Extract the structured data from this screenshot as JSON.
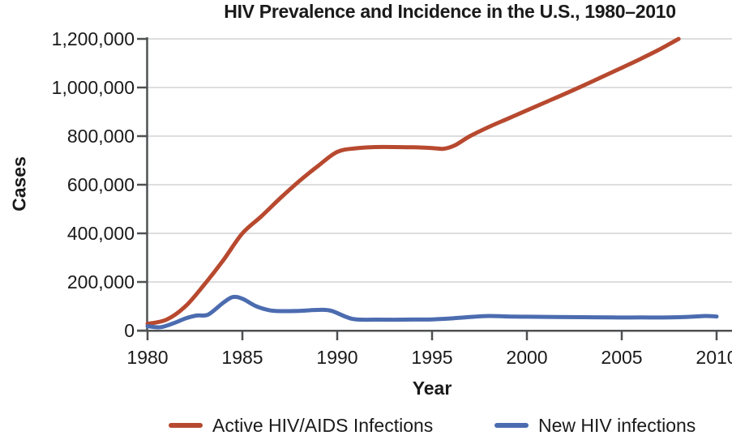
{
  "chart_data": {
    "type": "line",
    "title": "HIV Prevalence and Incidence in the U.S., 1980–2010",
    "xlabel": "Year",
    "ylabel": "Cases",
    "xlim": [
      1980,
      2010
    ],
    "ylim": [
      0,
      1200000
    ],
    "x_ticks": [
      1980,
      1985,
      1990,
      1995,
      2000,
      2005,
      2010
    ],
    "x_tick_labels": [
      "1980",
      "1985",
      "1990",
      "1995",
      "2000",
      "2005",
      "2010"
    ],
    "y_ticks": [
      0,
      200000,
      400000,
      600000,
      800000,
      1000000,
      1200000
    ],
    "y_tick_labels": [
      "0",
      "200,000",
      "400,000",
      "600,000",
      "800,000",
      "1,000,000",
      "1,200,000"
    ],
    "grid": true,
    "legend_position": "bottom",
    "series": [
      {
        "name": "Active HIV/AIDS Infections",
        "color": "#b7492f",
        "points": [
          [
            1980,
            28000
          ],
          [
            1981,
            45000
          ],
          [
            1982,
            100000
          ],
          [
            1983,
            190000
          ],
          [
            1984,
            290000
          ],
          [
            1985,
            400000
          ],
          [
            1986,
            470000
          ],
          [
            1987,
            545000
          ],
          [
            1988,
            615000
          ],
          [
            1989,
            678000
          ],
          [
            1990,
            735000
          ],
          [
            1991,
            750000
          ],
          [
            1992,
            755000
          ],
          [
            1993,
            755000
          ],
          [
            1994,
            754000
          ],
          [
            1995,
            751000
          ],
          [
            1995.6,
            748000
          ],
          [
            1996.2,
            762000
          ],
          [
            1997,
            800000
          ],
          [
            1998,
            838000
          ],
          [
            1999,
            872000
          ],
          [
            2000,
            906000
          ],
          [
            2001,
            940000
          ],
          [
            2002,
            974000
          ],
          [
            2003,
            1009000
          ],
          [
            2004,
            1045000
          ],
          [
            2005,
            1081000
          ],
          [
            2006,
            1118000
          ],
          [
            2007,
            1157000
          ],
          [
            2008,
            1200000
          ]
        ]
      },
      {
        "name": "New HIV infections",
        "color": "#4c6cb0",
        "points": [
          [
            1980,
            18000
          ],
          [
            1980.7,
            14000
          ],
          [
            1981.5,
            34000
          ],
          [
            1982,
            50000
          ],
          [
            1982.6,
            62000
          ],
          [
            1983.2,
            66000
          ],
          [
            1984,
            115000
          ],
          [
            1984.5,
            138000
          ],
          [
            1985,
            131000
          ],
          [
            1985.7,
            101000
          ],
          [
            1986.4,
            84000
          ],
          [
            1987,
            80000
          ],
          [
            1988,
            81000
          ],
          [
            1989,
            85000
          ],
          [
            1989.7,
            81000
          ],
          [
            1990.8,
            48000
          ],
          [
            1992,
            45000
          ],
          [
            1993.5,
            45000
          ],
          [
            1995,
            46000
          ],
          [
            1996,
            50000
          ],
          [
            1997,
            56000
          ],
          [
            1998,
            60000
          ],
          [
            1999,
            58000
          ],
          [
            2000,
            57000
          ],
          [
            2001.5,
            56000
          ],
          [
            2003,
            55000
          ],
          [
            2004.5,
            54000
          ],
          [
            2006,
            54000
          ],
          [
            2007.5,
            54000
          ],
          [
            2008.7,
            57000
          ],
          [
            2009.4,
            60000
          ],
          [
            2010,
            58000
          ]
        ]
      }
    ]
  },
  "colors": {
    "axis": "#4f5052",
    "grid": "#d2d3d5",
    "text": "#1a1a1a",
    "background": "#ffffff"
  }
}
